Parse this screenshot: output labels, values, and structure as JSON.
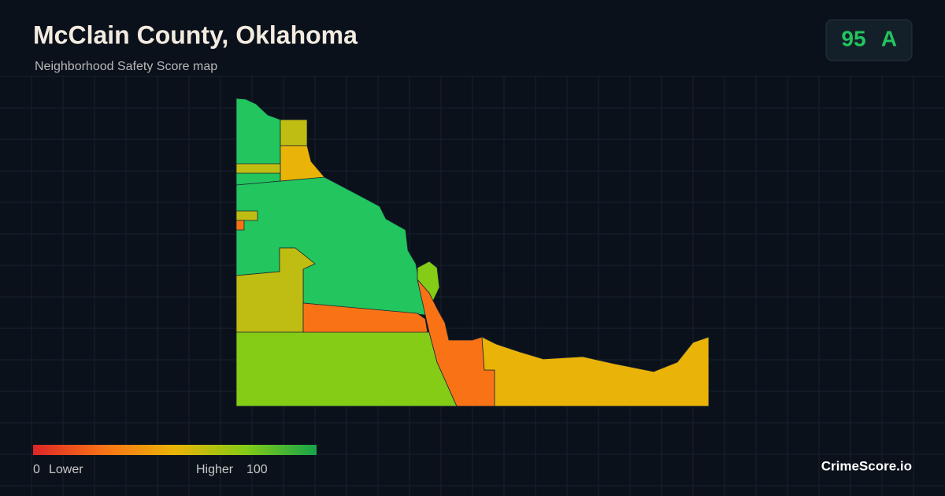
{
  "header": {
    "title": "McClain County, Oklahoma",
    "subtitle": "Neighborhood Safety Score map"
  },
  "score": {
    "value": "95",
    "grade": "A"
  },
  "legend": {
    "min": "0",
    "min_label": "Lower",
    "max_label": "Higher",
    "max": "100"
  },
  "brand": "CrimeScore.io"
}
